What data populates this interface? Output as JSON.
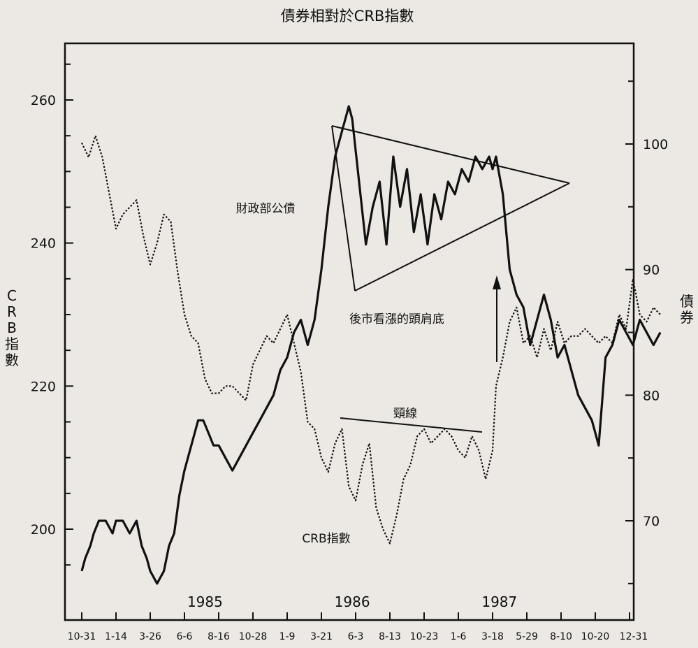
{
  "chart_data": {
    "type": "line",
    "title": "債券相對於CRB指數",
    "ylabel_left": "CRB指數",
    "ylabel_right": "債券",
    "x_ticks": [
      "10-31",
      "1-14",
      "3-26",
      "6-6",
      "8-16",
      "10-28",
      "1-9",
      "3-21",
      "6-3",
      "8-13",
      "10-23",
      "1-6",
      "3-18",
      "5-29",
      "8-10",
      "10-20",
      "12-31"
    ],
    "year_labels": [
      "1985",
      "1986",
      "1987"
    ],
    "left_ticks": [
      "200",
      "220",
      "240",
      "260"
    ],
    "right_ticks": [
      "70",
      "80",
      "90",
      "100"
    ],
    "ylim_left": [
      195,
      267
    ],
    "ylim_right": [
      65,
      108
    ],
    "annotations": {
      "bonds": "財政部公債",
      "pattern": "後市看漲的頭肩底",
      "neckline": "頸線",
      "crb": "CRB指數"
    },
    "series": [
      {
        "name": "財政部公債",
        "style": "solid",
        "x_index": [
          0.0,
          0.1,
          0.25,
          0.35,
          0.5,
          0.7,
          0.9,
          1.0,
          1.2,
          1.4,
          1.6,
          1.75,
          1.9,
          2.0,
          2.2,
          2.4,
          2.55,
          2.7,
          2.85,
          3.0,
          3.2,
          3.4,
          3.55,
          3.7,
          3.85,
          4.0,
          4.2,
          4.4,
          4.6,
          4.8,
          5.0,
          5.2,
          5.4,
          5.6,
          5.8,
          6.0,
          6.2,
          6.4,
          6.6,
          6.8,
          7.0,
          7.2,
          7.4,
          7.6,
          7.8,
          7.9,
          8.1,
          8.3,
          8.5,
          8.7,
          8.9,
          9.1,
          9.3,
          9.5,
          9.7,
          9.9,
          10.1,
          10.3,
          10.5,
          10.7,
          10.9,
          11.1,
          11.3,
          11.5,
          11.7,
          11.9,
          12.0,
          12.1,
          12.3,
          12.5,
          12.7,
          12.9,
          13.1,
          13.3,
          13.5,
          13.7,
          13.9,
          14.1,
          14.3,
          14.5,
          14.7,
          14.9,
          15.1,
          15.3,
          15.5,
          15.7,
          15.9,
          16.1,
          16.3,
          16.5,
          16.7,
          16.9
        ],
        "values": [
          66,
          67,
          68,
          69,
          70,
          70,
          69,
          70,
          70,
          69,
          70,
          68,
          67,
          66,
          65,
          66,
          68,
          69,
          72,
          74,
          76,
          78,
          78,
          77,
          76,
          76,
          75,
          74,
          75,
          76,
          77,
          78,
          79,
          80,
          82,
          83,
          85,
          86,
          84,
          86,
          90,
          95,
          99,
          101,
          103,
          102,
          97,
          92,
          95,
          97,
          92,
          99,
          95,
          98,
          93,
          96,
          92,
          96,
          94,
          97,
          96,
          98,
          97,
          99,
          98,
          99,
          98,
          99,
          96,
          90,
          88,
          87,
          84,
          86,
          88,
          86,
          83,
          84,
          82,
          80,
          79,
          78,
          76,
          83,
          84,
          86,
          85,
          84,
          86,
          85,
          84,
          85
        ]
      },
      {
        "name": "CRB指數",
        "style": "dotted",
        "x_index": [
          0.0,
          0.2,
          0.4,
          0.6,
          0.8,
          1.0,
          1.2,
          1.4,
          1.6,
          1.8,
          2.0,
          2.2,
          2.4,
          2.6,
          2.8,
          3.0,
          3.2,
          3.4,
          3.6,
          3.8,
          4.0,
          4.2,
          4.4,
          4.6,
          4.8,
          5.0,
          5.2,
          5.4,
          5.6,
          5.8,
          6.0,
          6.2,
          6.4,
          6.6,
          6.8,
          7.0,
          7.2,
          7.4,
          7.6,
          7.8,
          8.0,
          8.2,
          8.4,
          8.6,
          8.8,
          9.0,
          9.2,
          9.4,
          9.6,
          9.8,
          10.0,
          10.2,
          10.4,
          10.6,
          10.8,
          11.0,
          11.2,
          11.4,
          11.6,
          11.8,
          12.0,
          12.1,
          12.3,
          12.5,
          12.7,
          12.9,
          13.1,
          13.3,
          13.5,
          13.7,
          13.9,
          14.1,
          14.3,
          14.5,
          14.7,
          14.9,
          15.1,
          15.3,
          15.5,
          15.7,
          15.9,
          16.1,
          16.3,
          16.5,
          16.7,
          16.9
        ],
        "values": [
          254,
          252,
          255,
          252,
          247,
          242,
          244,
          245,
          246,
          241,
          237,
          240,
          244,
          243,
          236,
          230,
          227,
          226,
          221,
          219,
          219,
          220,
          220,
          219,
          218,
          223,
          225,
          227,
          226,
          228,
          230,
          226,
          222,
          215,
          214,
          210,
          208,
          212,
          214,
          206,
          204,
          209,
          212,
          203,
          200,
          198,
          202,
          207,
          209,
          213,
          214,
          212,
          213,
          214,
          213,
          211,
          210,
          213,
          211,
          207,
          211,
          220,
          224,
          229,
          231,
          226,
          227,
          224,
          228,
          225,
          229,
          226,
          227,
          227,
          228,
          227,
          226,
          227,
          226,
          230,
          228,
          235,
          230,
          229,
          231,
          230
        ]
      }
    ]
  }
}
